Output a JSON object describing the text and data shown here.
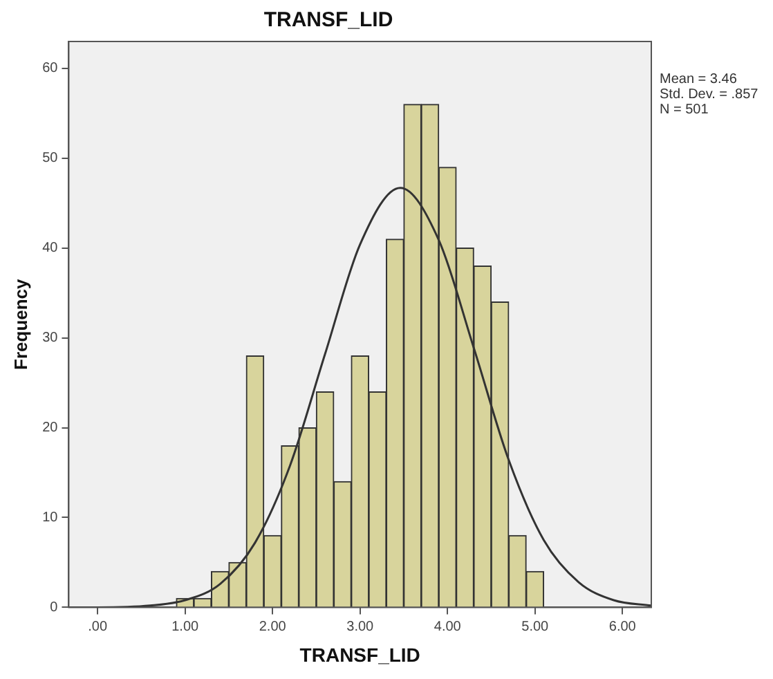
{
  "chart_data": {
    "type": "histogram",
    "title": "TRANSF_LID",
    "xlabel": "TRANSF_LID",
    "ylabel": "Frequency",
    "bins": [
      0.9,
      1.1,
      1.3,
      1.5,
      1.7,
      1.9,
      2.1,
      2.3,
      2.5,
      2.7,
      2.9,
      3.1,
      3.3,
      3.5,
      3.7,
      3.9,
      4.1,
      4.3,
      4.5,
      4.7,
      4.9,
      5.1
    ],
    "values": [
      1,
      1,
      4,
      5,
      28,
      8,
      18,
      20,
      24,
      14,
      28,
      24,
      41,
      56,
      56,
      49,
      40,
      38,
      34,
      8,
      4
    ],
    "color": "#d8d49c",
    "series": [
      {
        "type": "line",
        "color": "#333333",
        "x": [
          -0.33,
          0.0,
          0.6,
          1.0,
          1.4,
          1.8,
          2.2,
          2.6,
          3.0,
          3.46,
          3.9,
          4.3,
          4.7,
          5.1,
          5.5,
          5.9,
          6.33
        ],
        "values": [
          0,
          0,
          0.2,
          0.8,
          2.6,
          7.2,
          15.8,
          28.2,
          40.4,
          46.7,
          40.9,
          28.9,
          16.4,
          7.5,
          2.8,
          0.8,
          0.2
        ]
      }
    ],
    "marker": "none",
    "line_style": "solid",
    "grid": false,
    "legend": false,
    "xlim": [
      -0.33,
      6.33
    ],
    "xticks": [
      {
        "value": 0,
        "label": ".00"
      },
      {
        "value": 1,
        "label": "1.00"
      },
      {
        "value": 2,
        "label": "2.00"
      },
      {
        "value": 3,
        "label": "3.00"
      },
      {
        "value": 4,
        "label": "4.00"
      },
      {
        "value": 5,
        "label": "5.00"
      },
      {
        "value": 6,
        "label": "6.00"
      }
    ],
    "ylim": [
      0,
      63
    ],
    "yticks": [
      0,
      10,
      20,
      30,
      40,
      50,
      60
    ],
    "annotations": [
      "Mean = 3.46",
      "Std. Dev. = .857",
      "N = 501"
    ]
  }
}
